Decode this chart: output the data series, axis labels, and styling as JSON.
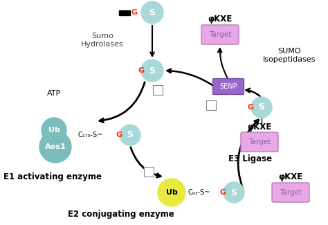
{
  "bg_color": "#ffffff",
  "sumo_circle_color": "#a8d8d8",
  "sumo_circle_text": "S",
  "sumo_circle_text_color": "#ffffff",
  "G_color": "#ff3300",
  "ub_e1_color": "#7bbcbc",
  "ub_e2_color": "#e8e840",
  "aos1_color": "#7bbcbc",
  "target_box_color": "#e8a8e8",
  "senp_box_color": "#9966cc",
  "label_e1": "E1 activating enzyme",
  "label_e2": "E2 conjugating enzyme",
  "label_e3": "E3 Ligase",
  "label_sumo_hydrolases": "Sumo\nHydrolases",
  "label_sumo_isopeptidases": "SUMO\nIsopeptidases",
  "label_atp": "ATP",
  "label_phikxe": "φKXE",
  "label_target": "Target",
  "label_senp": "SENP",
  "label_ub": "Ub",
  "label_aos1": "Aos1",
  "label_c173": "C₁₇₃-S~",
  "label_c93": "C₉₃-S~"
}
